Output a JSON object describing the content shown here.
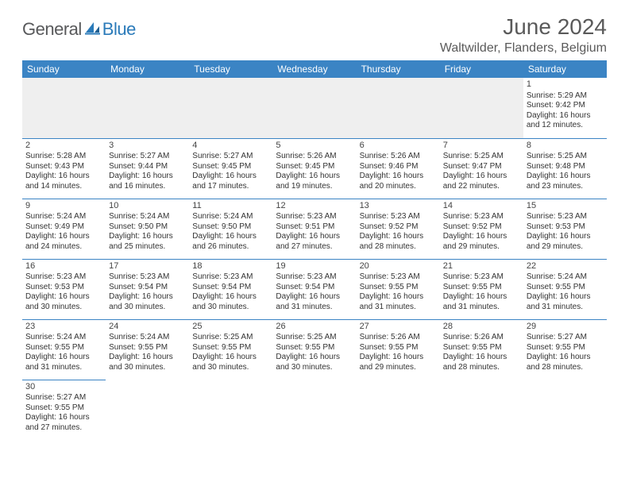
{
  "logo": {
    "text_general": "General",
    "text_blue": "Blue"
  },
  "header": {
    "month_title": "June 2024",
    "location": "Waltwilder, Flanders, Belgium"
  },
  "calendar": {
    "header_bg": "#3b84c4",
    "header_fg": "#ffffff",
    "border_color": "#3b84c4",
    "empty_bg": "#efefef",
    "day_names": [
      "Sunday",
      "Monday",
      "Tuesday",
      "Wednesday",
      "Thursday",
      "Friday",
      "Saturday"
    ],
    "weeks": [
      [
        null,
        null,
        null,
        null,
        null,
        null,
        {
          "n": "1",
          "sr": "Sunrise: 5:29 AM",
          "ss": "Sunset: 9:42 PM",
          "d1": "Daylight: 16 hours",
          "d2": "and 12 minutes."
        }
      ],
      [
        {
          "n": "2",
          "sr": "Sunrise: 5:28 AM",
          "ss": "Sunset: 9:43 PM",
          "d1": "Daylight: 16 hours",
          "d2": "and 14 minutes."
        },
        {
          "n": "3",
          "sr": "Sunrise: 5:27 AM",
          "ss": "Sunset: 9:44 PM",
          "d1": "Daylight: 16 hours",
          "d2": "and 16 minutes."
        },
        {
          "n": "4",
          "sr": "Sunrise: 5:27 AM",
          "ss": "Sunset: 9:45 PM",
          "d1": "Daylight: 16 hours",
          "d2": "and 17 minutes."
        },
        {
          "n": "5",
          "sr": "Sunrise: 5:26 AM",
          "ss": "Sunset: 9:45 PM",
          "d1": "Daylight: 16 hours",
          "d2": "and 19 minutes."
        },
        {
          "n": "6",
          "sr": "Sunrise: 5:26 AM",
          "ss": "Sunset: 9:46 PM",
          "d1": "Daylight: 16 hours",
          "d2": "and 20 minutes."
        },
        {
          "n": "7",
          "sr": "Sunrise: 5:25 AM",
          "ss": "Sunset: 9:47 PM",
          "d1": "Daylight: 16 hours",
          "d2": "and 22 minutes."
        },
        {
          "n": "8",
          "sr": "Sunrise: 5:25 AM",
          "ss": "Sunset: 9:48 PM",
          "d1": "Daylight: 16 hours",
          "d2": "and 23 minutes."
        }
      ],
      [
        {
          "n": "9",
          "sr": "Sunrise: 5:24 AM",
          "ss": "Sunset: 9:49 PM",
          "d1": "Daylight: 16 hours",
          "d2": "and 24 minutes."
        },
        {
          "n": "10",
          "sr": "Sunrise: 5:24 AM",
          "ss": "Sunset: 9:50 PM",
          "d1": "Daylight: 16 hours",
          "d2": "and 25 minutes."
        },
        {
          "n": "11",
          "sr": "Sunrise: 5:24 AM",
          "ss": "Sunset: 9:50 PM",
          "d1": "Daylight: 16 hours",
          "d2": "and 26 minutes."
        },
        {
          "n": "12",
          "sr": "Sunrise: 5:23 AM",
          "ss": "Sunset: 9:51 PM",
          "d1": "Daylight: 16 hours",
          "d2": "and 27 minutes."
        },
        {
          "n": "13",
          "sr": "Sunrise: 5:23 AM",
          "ss": "Sunset: 9:52 PM",
          "d1": "Daylight: 16 hours",
          "d2": "and 28 minutes."
        },
        {
          "n": "14",
          "sr": "Sunrise: 5:23 AM",
          "ss": "Sunset: 9:52 PM",
          "d1": "Daylight: 16 hours",
          "d2": "and 29 minutes."
        },
        {
          "n": "15",
          "sr": "Sunrise: 5:23 AM",
          "ss": "Sunset: 9:53 PM",
          "d1": "Daylight: 16 hours",
          "d2": "and 29 minutes."
        }
      ],
      [
        {
          "n": "16",
          "sr": "Sunrise: 5:23 AM",
          "ss": "Sunset: 9:53 PM",
          "d1": "Daylight: 16 hours",
          "d2": "and 30 minutes."
        },
        {
          "n": "17",
          "sr": "Sunrise: 5:23 AM",
          "ss": "Sunset: 9:54 PM",
          "d1": "Daylight: 16 hours",
          "d2": "and 30 minutes."
        },
        {
          "n": "18",
          "sr": "Sunrise: 5:23 AM",
          "ss": "Sunset: 9:54 PM",
          "d1": "Daylight: 16 hours",
          "d2": "and 30 minutes."
        },
        {
          "n": "19",
          "sr": "Sunrise: 5:23 AM",
          "ss": "Sunset: 9:54 PM",
          "d1": "Daylight: 16 hours",
          "d2": "and 31 minutes."
        },
        {
          "n": "20",
          "sr": "Sunrise: 5:23 AM",
          "ss": "Sunset: 9:55 PM",
          "d1": "Daylight: 16 hours",
          "d2": "and 31 minutes."
        },
        {
          "n": "21",
          "sr": "Sunrise: 5:23 AM",
          "ss": "Sunset: 9:55 PM",
          "d1": "Daylight: 16 hours",
          "d2": "and 31 minutes."
        },
        {
          "n": "22",
          "sr": "Sunrise: 5:24 AM",
          "ss": "Sunset: 9:55 PM",
          "d1": "Daylight: 16 hours",
          "d2": "and 31 minutes."
        }
      ],
      [
        {
          "n": "23",
          "sr": "Sunrise: 5:24 AM",
          "ss": "Sunset: 9:55 PM",
          "d1": "Daylight: 16 hours",
          "d2": "and 31 minutes."
        },
        {
          "n": "24",
          "sr": "Sunrise: 5:24 AM",
          "ss": "Sunset: 9:55 PM",
          "d1": "Daylight: 16 hours",
          "d2": "and 30 minutes."
        },
        {
          "n": "25",
          "sr": "Sunrise: 5:25 AM",
          "ss": "Sunset: 9:55 PM",
          "d1": "Daylight: 16 hours",
          "d2": "and 30 minutes."
        },
        {
          "n": "26",
          "sr": "Sunrise: 5:25 AM",
          "ss": "Sunset: 9:55 PM",
          "d1": "Daylight: 16 hours",
          "d2": "and 30 minutes."
        },
        {
          "n": "27",
          "sr": "Sunrise: 5:26 AM",
          "ss": "Sunset: 9:55 PM",
          "d1": "Daylight: 16 hours",
          "d2": "and 29 minutes."
        },
        {
          "n": "28",
          "sr": "Sunrise: 5:26 AM",
          "ss": "Sunset: 9:55 PM",
          "d1": "Daylight: 16 hours",
          "d2": "and 28 minutes."
        },
        {
          "n": "29",
          "sr": "Sunrise: 5:27 AM",
          "ss": "Sunset: 9:55 PM",
          "d1": "Daylight: 16 hours",
          "d2": "and 28 minutes."
        }
      ],
      [
        {
          "n": "30",
          "sr": "Sunrise: 5:27 AM",
          "ss": "Sunset: 9:55 PM",
          "d1": "Daylight: 16 hours",
          "d2": "and 27 minutes."
        },
        null,
        null,
        null,
        null,
        null,
        null
      ]
    ]
  }
}
